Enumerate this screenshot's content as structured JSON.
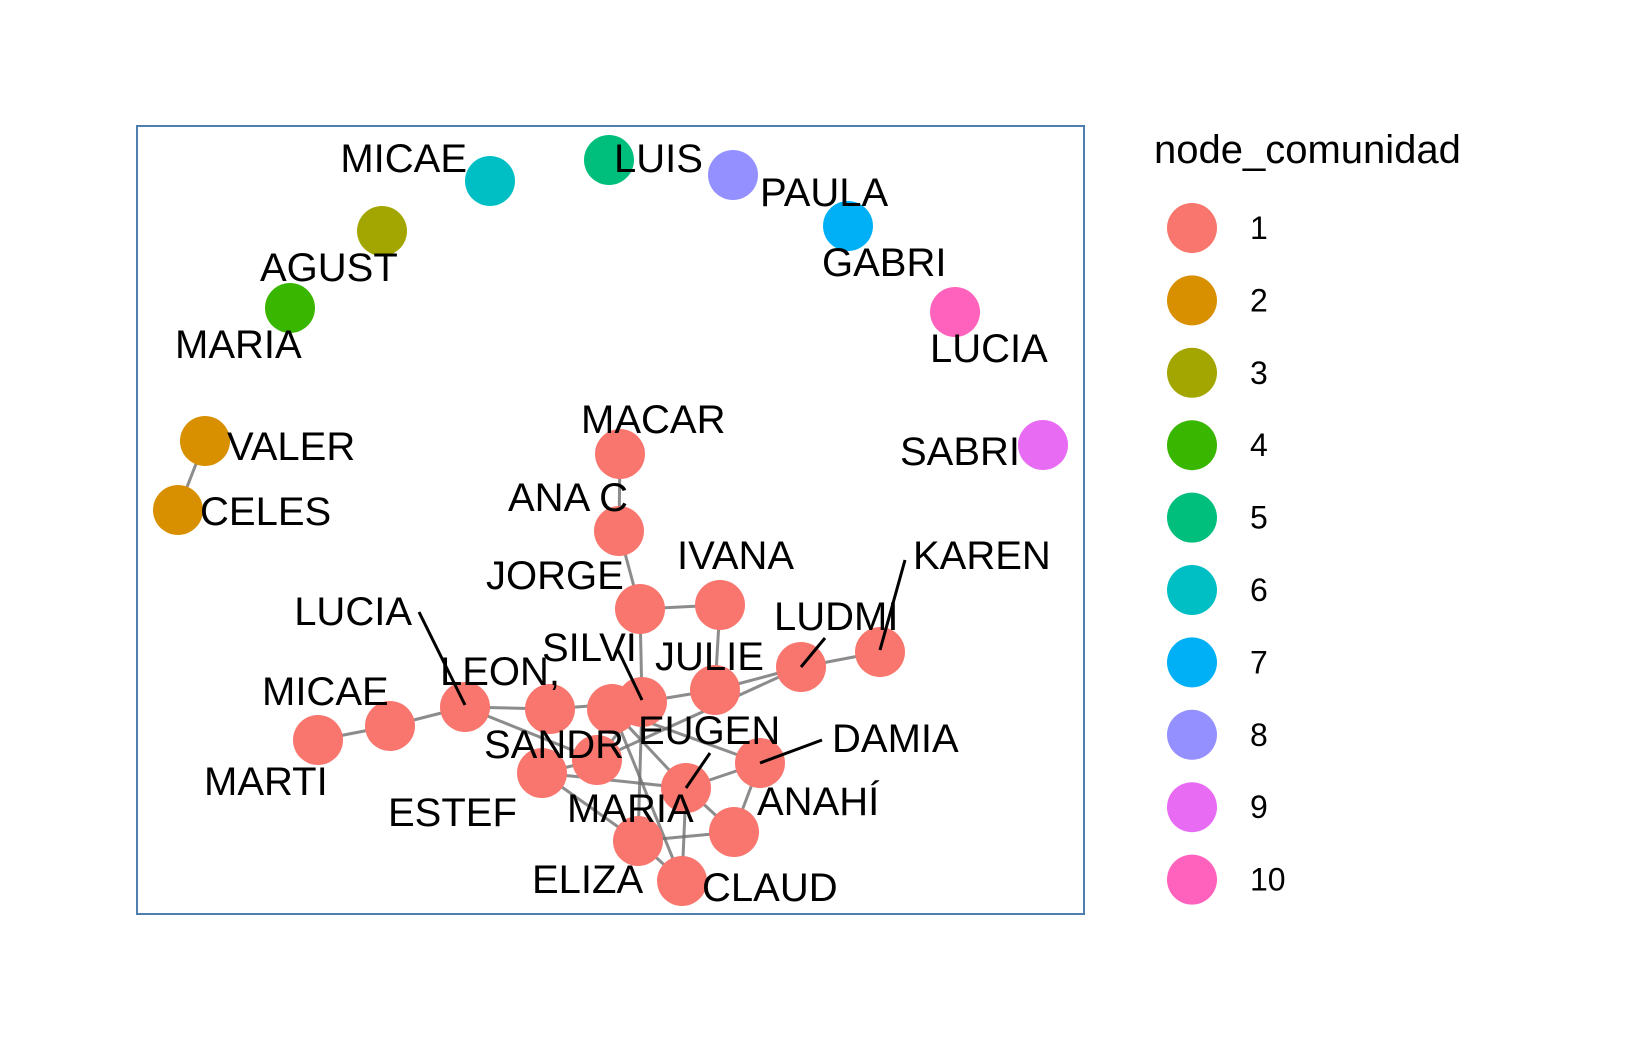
{
  "legend": {
    "title": "node_comunidad",
    "items": [
      {
        "label": "1",
        "color": "#F8766D"
      },
      {
        "label": "2",
        "color": "#D89000"
      },
      {
        "label": "3",
        "color": "#A3A500"
      },
      {
        "label": "4",
        "color": "#39B600"
      },
      {
        "label": "5",
        "color": "#00BF7D"
      },
      {
        "label": "6",
        "color": "#00BFC4"
      },
      {
        "label": "7",
        "color": "#00B0F6"
      },
      {
        "label": "8",
        "color": "#9590FF"
      },
      {
        "label": "9",
        "color": "#E76BF3"
      },
      {
        "label": "10",
        "color": "#FF62BC"
      }
    ]
  },
  "nodes": [
    {
      "id": "micae_top",
      "label": "MICAE",
      "community": "6"
    },
    {
      "id": "luis",
      "label": "LUIS",
      "community": "5"
    },
    {
      "id": "paula",
      "label": "PAULA",
      "community": "8"
    },
    {
      "id": "agust",
      "label": "AGUST",
      "community": "3"
    },
    {
      "id": "gabri",
      "label": "GABRI",
      "community": "7"
    },
    {
      "id": "maria_top",
      "label": "MARIA",
      "community": "4"
    },
    {
      "id": "lucia_top",
      "label": "LUCIA",
      "community": "10"
    },
    {
      "id": "valer",
      "label": "VALER",
      "community": "2"
    },
    {
      "id": "celes",
      "label": "CELES",
      "community": "2"
    },
    {
      "id": "sabri",
      "label": "SABRI",
      "community": "9"
    },
    {
      "id": "macar",
      "label": "MACAR",
      "community": "1"
    },
    {
      "id": "anac",
      "label": "ANA C",
      "community": "1"
    },
    {
      "id": "jorge",
      "label": "JORGE",
      "community": "1"
    },
    {
      "id": "ivana",
      "label": "IVANA",
      "community": "1"
    },
    {
      "id": "karen",
      "label": "KAREN",
      "community": "1"
    },
    {
      "id": "ludmi",
      "label": "LUDMI",
      "community": "1"
    },
    {
      "id": "lucia",
      "label": "LUCIA",
      "community": "1"
    },
    {
      "id": "silvi",
      "label": "SILVI",
      "community": "1"
    },
    {
      "id": "julie",
      "label": "JULIE",
      "community": "1"
    },
    {
      "id": "leon",
      "label": "LEON,",
      "community": "1"
    },
    {
      "id": "micae",
      "label": "MICAE",
      "community": "1"
    },
    {
      "id": "eugen",
      "label": "EUGEN",
      "community": "1"
    },
    {
      "id": "damia",
      "label": "DAMIA",
      "community": "1"
    },
    {
      "id": "sandr",
      "label": "SANDR",
      "community": "1"
    },
    {
      "id": "marti",
      "label": "MARTI",
      "community": "1"
    },
    {
      "id": "anahi",
      "label": "ANAHÍ",
      "community": "1"
    },
    {
      "id": "maria",
      "label": "MARIA",
      "community": "1"
    },
    {
      "id": "estef",
      "label": "ESTEF",
      "community": "1"
    },
    {
      "id": "eliza",
      "label": "ELIZA",
      "community": "1"
    },
    {
      "id": "claud",
      "label": "CLAUD",
      "community": "1"
    }
  ],
  "edges": [
    [
      "valer",
      "celes"
    ],
    [
      "macar",
      "anac"
    ],
    [
      "anac",
      "jorge"
    ],
    [
      "jorge",
      "ivana"
    ],
    [
      "jorge",
      "silvi"
    ],
    [
      "ivana",
      "julie"
    ],
    [
      "ludmi",
      "karen"
    ],
    [
      "julie",
      "ludmi"
    ],
    [
      "silvi",
      "julie"
    ],
    [
      "sandr",
      "ludmi"
    ],
    [
      "leon",
      "lucia"
    ],
    [
      "lucia",
      "micae"
    ],
    [
      "micae",
      "marti"
    ],
    [
      "leon",
      "silvi"
    ],
    [
      "lucia",
      "sandr"
    ],
    [
      "sandr",
      "silvi"
    ],
    [
      "silvi",
      "eugen"
    ],
    [
      "sandr",
      "estef"
    ],
    [
      "estef",
      "maria"
    ],
    [
      "maria",
      "eugen"
    ],
    [
      "eugen",
      "damia"
    ],
    [
      "maria",
      "damia"
    ],
    [
      "damia",
      "anahi"
    ],
    [
      "maria",
      "anahi"
    ],
    [
      "anahi",
      "eliza"
    ],
    [
      "eliza",
      "claud"
    ],
    [
      "maria",
      "claud"
    ],
    [
      "eugen",
      "claud"
    ],
    [
      "silvi",
      "eliza"
    ],
    [
      "estef",
      "eliza"
    ]
  ]
}
